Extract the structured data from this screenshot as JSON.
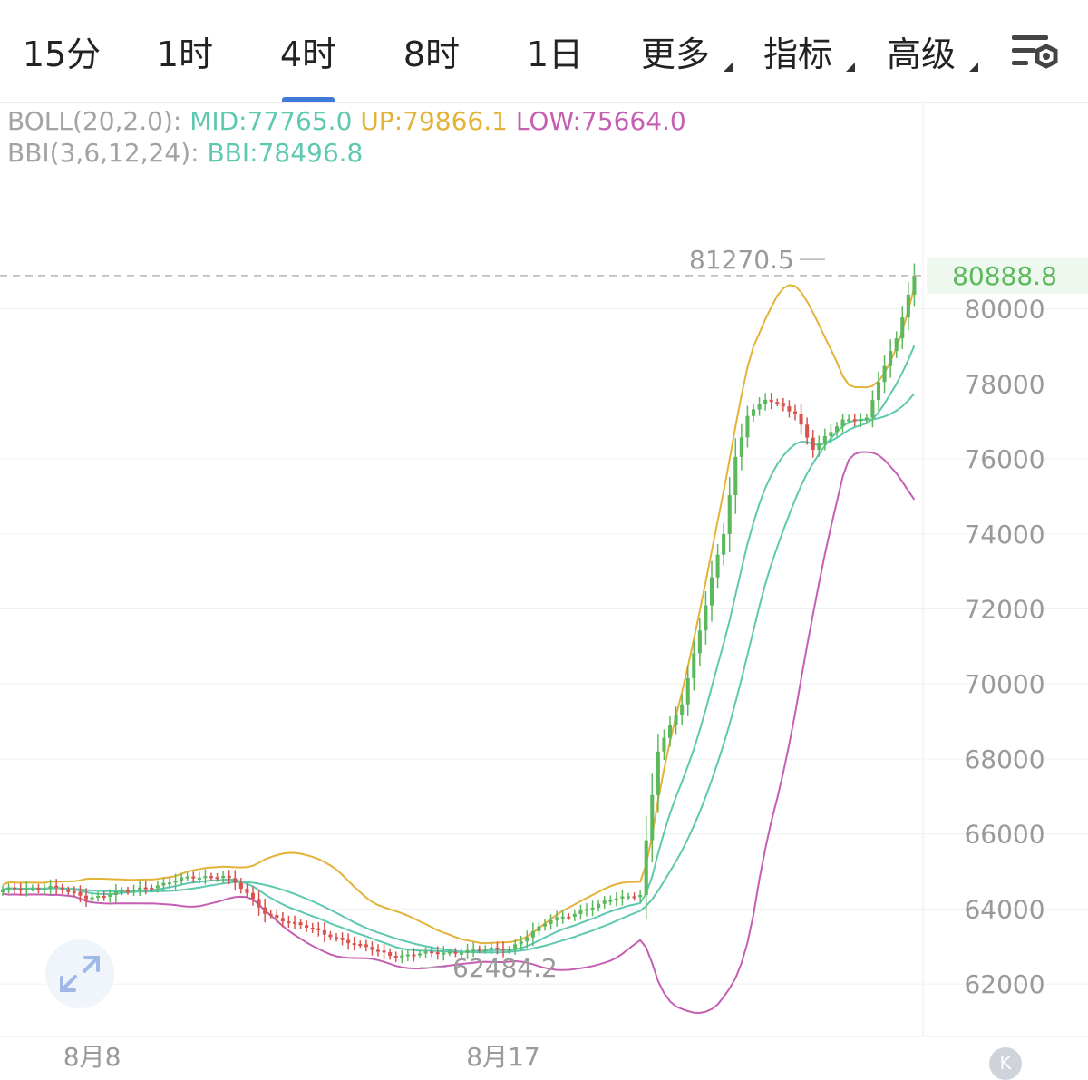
{
  "tabs": [
    {
      "label": "15分",
      "active": false,
      "dropdown": false
    },
    {
      "label": "1时",
      "active": false,
      "dropdown": false
    },
    {
      "label": "4时",
      "active": true,
      "dropdown": false
    },
    {
      "label": "8时",
      "active": false,
      "dropdown": false
    },
    {
      "label": "1日",
      "active": false,
      "dropdown": false
    },
    {
      "label": "更多",
      "active": false,
      "dropdown": true
    },
    {
      "label": "指标",
      "active": false,
      "dropdown": true
    },
    {
      "label": "高级",
      "active": false,
      "dropdown": true
    }
  ],
  "settings_icon": "chart-settings-icon",
  "legend": {
    "boll_label": "BOLL(20,2.0):",
    "mid": "MID:77765.0",
    "up": "UP:79866.1",
    "low": "LOW:75664.0",
    "bbi_label": "BBI(3,6,12,24):",
    "bbi": "BBI:78496.8"
  },
  "colors": {
    "up_candle": "#5cb85c",
    "down_candle": "#d9534f",
    "mid": "#5ec8b0",
    "upper": "#e3b238",
    "lower": "#c45fb2",
    "bbi": "#5ec8b0",
    "accent": "#3f7ad8"
  },
  "chart_data": {
    "type": "candlestick",
    "timeframe": "4时",
    "ylim": [
      60600,
      83400
    ],
    "y_ticks": [
      62000,
      64000,
      66000,
      68000,
      70000,
      72000,
      74000,
      76000,
      78000,
      80000
    ],
    "x_labels": [
      {
        "label": "8月8",
        "index": 15
      },
      {
        "label": "8月17",
        "index": 84
      }
    ],
    "candle_count": 154,
    "current_price": 80888.8,
    "current_price_label": "80888.8",
    "high_marker": {
      "label": "81270.5",
      "value": 81270.5,
      "index": 138
    },
    "low_marker": {
      "label": "62484.2",
      "value": 62484.2,
      "index": 70
    },
    "grid": true,
    "anchors": [
      [
        0,
        64500
      ],
      [
        8,
        64600
      ],
      [
        14,
        64300
      ],
      [
        22,
        64500
      ],
      [
        30,
        64800
      ],
      [
        37,
        64900
      ],
      [
        39,
        64700
      ],
      [
        44,
        63900
      ],
      [
        49,
        63600
      ],
      [
        55,
        63300
      ],
      [
        60,
        63000
      ],
      [
        66,
        62750
      ],
      [
        72,
        62820
      ],
      [
        79,
        62900
      ],
      [
        85,
        62950
      ],
      [
        92,
        63700
      ],
      [
        100,
        64100
      ],
      [
        103,
        64300
      ],
      [
        107,
        64400
      ],
      [
        108,
        65800
      ],
      [
        110,
        68200
      ],
      [
        114,
        69500
      ],
      [
        117,
        71500
      ],
      [
        121,
        74000
      ],
      [
        123,
        76000
      ],
      [
        125,
        77200
      ],
      [
        128,
        77600
      ],
      [
        133,
        77200
      ],
      [
        136,
        76300
      ],
      [
        141,
        77000
      ],
      [
        145,
        77100
      ],
      [
        147,
        78100
      ],
      [
        150,
        79200
      ],
      [
        153,
        80888.8
      ]
    ],
    "series": [
      {
        "name": "MID",
        "value": 77765.0
      },
      {
        "name": "UP",
        "value": 79866.1
      },
      {
        "name": "LOW",
        "value": 75664.0
      },
      {
        "name": "BBI",
        "value": 78496.8
      }
    ]
  }
}
